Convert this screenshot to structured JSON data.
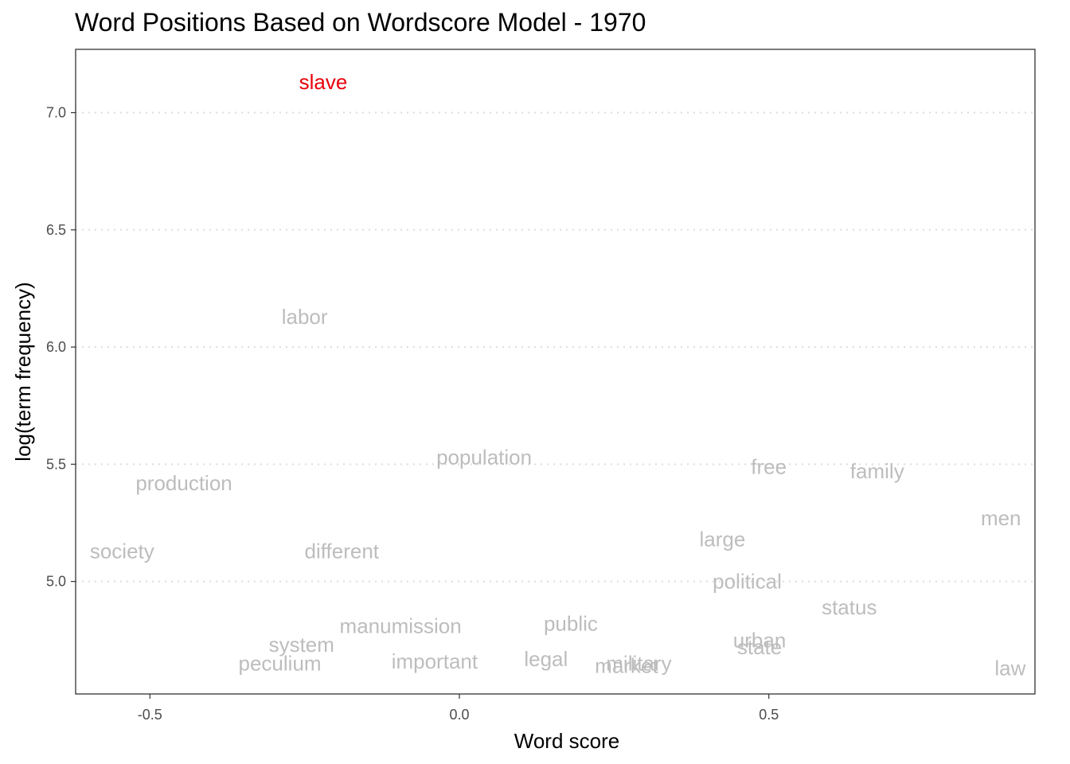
{
  "chart_data": {
    "type": "scatter",
    "title": "Word Positions Based on Wordscore Model - 1970",
    "xlabel": "Word score",
    "ylabel": "log(term frequency)",
    "xlim": [
      -0.62,
      0.93
    ],
    "ylim": [
      4.52,
      7.27
    ],
    "x_ticks": [
      -0.5,
      0.0,
      0.5
    ],
    "x_tick_labels": [
      "-0.5",
      "0.0",
      "0.5"
    ],
    "y_ticks": [
      5.0,
      5.5,
      6.0,
      6.5,
      7.0
    ],
    "y_tick_labels": [
      "5.0",
      "5.5",
      "6.0",
      "6.5",
      "7.0"
    ],
    "grid": "horizontal-dotted",
    "highlight_color": "#e8000b",
    "default_color": "#bdbdbd",
    "points": [
      {
        "word": "slave",
        "x": -0.22,
        "y": 7.13,
        "highlight": true
      },
      {
        "word": "labor",
        "x": -0.25,
        "y": 6.13,
        "highlight": false
      },
      {
        "word": "population",
        "x": 0.04,
        "y": 5.53,
        "highlight": false
      },
      {
        "word": "production",
        "x": -0.445,
        "y": 5.42,
        "highlight": false
      },
      {
        "word": "free",
        "x": 0.5,
        "y": 5.49,
        "highlight": false
      },
      {
        "word": "family",
        "x": 0.675,
        "y": 5.47,
        "highlight": false
      },
      {
        "word": "men",
        "x": 0.875,
        "y": 5.27,
        "highlight": false
      },
      {
        "word": "society",
        "x": -0.545,
        "y": 5.13,
        "highlight": false
      },
      {
        "word": "different",
        "x": -0.19,
        "y": 5.13,
        "highlight": false
      },
      {
        "word": "large",
        "x": 0.425,
        "y": 5.18,
        "highlight": false
      },
      {
        "word": "political",
        "x": 0.465,
        "y": 5.0,
        "highlight": false
      },
      {
        "word": "status",
        "x": 0.63,
        "y": 4.89,
        "highlight": false
      },
      {
        "word": "manumission",
        "x": -0.095,
        "y": 4.81,
        "highlight": false
      },
      {
        "word": "public",
        "x": 0.18,
        "y": 4.82,
        "highlight": false
      },
      {
        "word": "system",
        "x": -0.255,
        "y": 4.73,
        "highlight": false
      },
      {
        "word": "urban",
        "x": 0.485,
        "y": 4.75,
        "highlight": false
      },
      {
        "word": "state",
        "x": 0.485,
        "y": 4.72,
        "highlight": false
      },
      {
        "word": "peculium",
        "x": -0.29,
        "y": 4.65,
        "highlight": false
      },
      {
        "word": "important",
        "x": -0.04,
        "y": 4.66,
        "highlight": false
      },
      {
        "word": "legal",
        "x": 0.14,
        "y": 4.67,
        "highlight": false
      },
      {
        "word": "military",
        "x": 0.29,
        "y": 4.65,
        "highlight": false
      },
      {
        "word": "market",
        "x": 0.27,
        "y": 4.64,
        "highlight": false
      },
      {
        "word": "law",
        "x": 0.89,
        "y": 4.63,
        "highlight": false
      }
    ]
  }
}
